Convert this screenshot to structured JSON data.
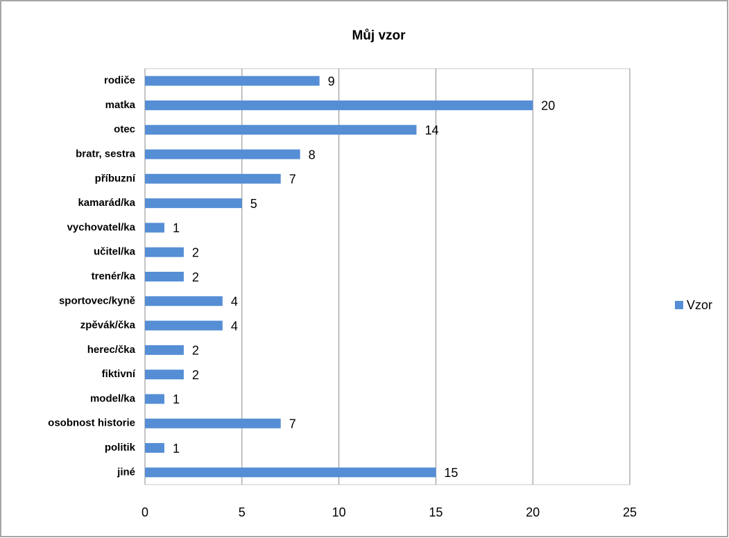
{
  "chart_data": {
    "type": "bar",
    "orientation": "horizontal",
    "title": "Můj vzor",
    "categories": [
      "rodiče",
      "matka",
      "otec",
      "bratr, sestra",
      "příbuzní",
      "kamarád/ka",
      "vychovatel/ka",
      "učitel/ka",
      "trenér/ka",
      "sportovec/kyně",
      "zpěvák/čka",
      "herec/čka",
      "fiktivní",
      "model/ka",
      "osobnost historie",
      "politik",
      "jiné"
    ],
    "series": [
      {
        "name": "Vzor",
        "color": "#558ed5",
        "values": [
          9,
          20,
          14,
          8,
          7,
          5,
          1,
          2,
          2,
          4,
          4,
          2,
          2,
          1,
          7,
          1,
          15
        ]
      }
    ],
    "xlim": [
      0,
      25
    ],
    "xticks": [
      0,
      5,
      10,
      15,
      20,
      25
    ],
    "grid": true,
    "legend": "right"
  }
}
